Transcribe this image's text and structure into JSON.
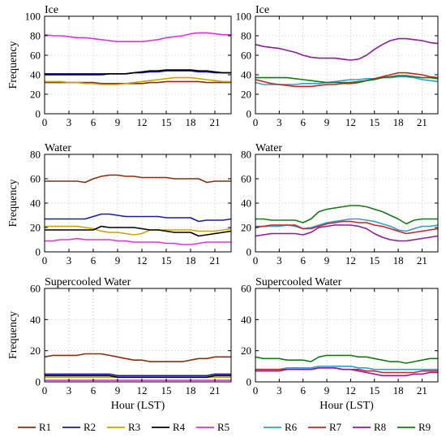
{
  "chart_data": [
    {
      "type": "line",
      "title": "Ice",
      "ylabel": "Frequency",
      "xlabel": "",
      "x": [
        0,
        1,
        2,
        3,
        4,
        5,
        6,
        7,
        8,
        9,
        10,
        11,
        12,
        13,
        14,
        15,
        16,
        17,
        18,
        19,
        20,
        21,
        22,
        23
      ],
      "xticks": [
        0,
        3,
        6,
        9,
        12,
        15,
        18,
        21
      ],
      "xlim": [
        0,
        23
      ],
      "ylim": [
        0,
        100
      ],
      "yticks": [
        0,
        20,
        40,
        60,
        80,
        100
      ],
      "grid": true,
      "series": [
        {
          "name": "R1",
          "color": "#8B2E0F",
          "values": [
            32,
            32,
            32,
            32,
            32,
            32,
            32,
            31,
            31,
            31,
            31,
            31,
            31,
            32,
            32,
            33,
            33,
            33,
            33,
            33,
            32,
            32,
            32,
            32
          ]
        },
        {
          "name": "R2",
          "color": "#1A1AA6",
          "values": [
            41,
            41,
            41,
            41,
            41,
            41,
            41,
            41,
            41,
            41,
            41,
            42,
            42,
            43,
            43,
            44,
            44,
            44,
            44,
            43,
            43,
            42,
            42,
            42
          ]
        },
        {
          "name": "R3",
          "color": "#C8A400",
          "values": [
            33,
            33,
            33,
            32,
            32,
            31,
            31,
            30,
            30,
            30,
            31,
            32,
            33,
            34,
            35,
            36,
            37,
            37,
            37,
            36,
            35,
            34,
            33,
            33
          ]
        },
        {
          "name": "R4",
          "color": "#000000",
          "values": [
            40,
            40,
            40,
            40,
            40,
            40,
            40,
            40,
            41,
            41,
            41,
            42,
            43,
            44,
            44,
            45,
            45,
            45,
            45,
            44,
            44,
            43,
            42,
            42
          ]
        },
        {
          "name": "R5",
          "color": "#E030E0",
          "values": [
            81,
            80,
            80,
            79,
            78,
            78,
            77,
            76,
            75,
            74,
            74,
            74,
            74,
            75,
            76,
            78,
            79,
            80,
            82,
            83,
            83,
            82,
            81,
            81
          ]
        }
      ]
    },
    {
      "type": "line",
      "title": "Ice",
      "ylabel": "",
      "xlabel": "",
      "x": [
        0,
        1,
        2,
        3,
        4,
        5,
        6,
        7,
        8,
        9,
        10,
        11,
        12,
        13,
        14,
        15,
        16,
        17,
        18,
        19,
        20,
        21,
        22,
        23
      ],
      "xticks": [
        0,
        3,
        6,
        9,
        12,
        15,
        18,
        21
      ],
      "xlim": [
        0,
        23
      ],
      "ylim": [
        0,
        100
      ],
      "yticks": [
        0,
        20,
        40,
        60,
        80,
        100
      ],
      "grid": true,
      "series": [
        {
          "name": "R6",
          "color": "#2E9ED6",
          "values": [
            32,
            30,
            30,
            30,
            30,
            30,
            31,
            31,
            31,
            32,
            33,
            34,
            35,
            35,
            36,
            36,
            37,
            37,
            38,
            38,
            37,
            35,
            34,
            33
          ]
        },
        {
          "name": "R7",
          "color": "#CC2222",
          "values": [
            35,
            33,
            31,
            30,
            29,
            28,
            28,
            28,
            29,
            30,
            30,
            31,
            31,
            32,
            34,
            36,
            38,
            40,
            42,
            42,
            41,
            40,
            38,
            37
          ]
        },
        {
          "name": "R8",
          "color": "#8A1C9E",
          "values": [
            71,
            69,
            68,
            67,
            65,
            63,
            60,
            58,
            57,
            57,
            57,
            56,
            55,
            56,
            60,
            66,
            71,
            75,
            77,
            77,
            76,
            75,
            73,
            72
          ]
        },
        {
          "name": "R9",
          "color": "#157A15",
          "values": [
            37,
            37,
            37,
            37,
            37,
            36,
            35,
            34,
            33,
            32,
            32,
            32,
            32,
            33,
            34,
            35,
            37,
            38,
            39,
            39,
            38,
            37,
            37,
            36
          ]
        }
      ]
    },
    {
      "type": "line",
      "title": "Water",
      "ylabel": "Frequency",
      "xlabel": "",
      "x": [
        0,
        1,
        2,
        3,
        4,
        5,
        6,
        7,
        8,
        9,
        10,
        11,
        12,
        13,
        14,
        15,
        16,
        17,
        18,
        19,
        20,
        21,
        22,
        23
      ],
      "xticks": [
        0,
        3,
        6,
        9,
        12,
        15,
        18,
        21
      ],
      "xlim": [
        0,
        23
      ],
      "ylim": [
        0,
        80
      ],
      "yticks": [
        0,
        20,
        40,
        60,
        80
      ],
      "grid": true,
      "series": [
        {
          "name": "R1",
          "color": "#8B2E0F",
          "values": [
            58,
            58,
            58,
            58,
            58,
            57,
            60,
            62,
            63,
            63,
            62,
            62,
            61,
            61,
            61,
            61,
            60,
            60,
            60,
            60,
            57,
            58,
            58,
            58
          ]
        },
        {
          "name": "R2",
          "color": "#1A1AA6",
          "values": [
            27,
            27,
            27,
            27,
            27,
            27,
            29,
            31,
            31,
            30,
            29,
            29,
            29,
            29,
            29,
            28,
            28,
            28,
            28,
            25,
            26,
            26,
            26,
            27
          ]
        },
        {
          "name": "R3",
          "color": "#C8A400",
          "values": [
            21,
            21,
            21,
            21,
            21,
            20,
            19,
            17,
            16,
            16,
            15,
            14,
            15,
            18,
            18,
            18,
            18,
            18,
            18,
            17,
            17,
            17,
            18,
            19
          ]
        },
        {
          "name": "R4",
          "color": "#000000",
          "values": [
            18,
            18,
            18,
            18,
            18,
            18,
            18,
            21,
            20,
            20,
            20,
            20,
            19,
            18,
            18,
            17,
            16,
            16,
            16,
            13,
            14,
            15,
            16,
            17
          ]
        },
        {
          "name": "R5",
          "color": "#E030E0",
          "values": [
            9,
            9,
            10,
            10,
            11,
            10,
            10,
            10,
            10,
            9,
            9,
            8,
            8,
            8,
            8,
            7,
            7,
            6,
            6,
            7,
            8,
            8,
            8,
            8
          ]
        }
      ]
    },
    {
      "type": "line",
      "title": "Water",
      "ylabel": "",
      "xlabel": "",
      "x": [
        0,
        1,
        2,
        3,
        4,
        5,
        6,
        7,
        8,
        9,
        10,
        11,
        12,
        13,
        14,
        15,
        16,
        17,
        18,
        19,
        20,
        21,
        22,
        23
      ],
      "xticks": [
        0,
        3,
        6,
        9,
        12,
        15,
        18,
        21
      ],
      "xlim": [
        0,
        23
      ],
      "ylim": [
        0,
        80
      ],
      "yticks": [
        0,
        20,
        40,
        60,
        80
      ],
      "grid": true,
      "series": [
        {
          "name": "R6",
          "color": "#2E9ED6",
          "values": [
            21,
            21,
            21,
            21,
            22,
            21,
            19,
            20,
            22,
            24,
            25,
            26,
            27,
            27,
            26,
            25,
            23,
            21,
            18,
            17,
            19,
            21,
            21,
            22
          ]
        },
        {
          "name": "R7",
          "color": "#CC2222",
          "values": [
            20,
            21,
            22,
            22,
            22,
            22,
            19,
            19,
            21,
            23,
            24,
            25,
            25,
            24,
            24,
            22,
            21,
            19,
            17,
            15,
            16,
            17,
            18,
            19
          ]
        },
        {
          "name": "R8",
          "color": "#8A1C9E",
          "values": [
            13,
            14,
            15,
            15,
            15,
            15,
            14,
            16,
            20,
            21,
            22,
            22,
            22,
            21,
            19,
            15,
            12,
            10,
            9,
            9,
            10,
            11,
            12,
            13
          ]
        },
        {
          "name": "R9",
          "color": "#157A15",
          "values": [
            27,
            27,
            26,
            26,
            26,
            26,
            24,
            27,
            33,
            35,
            36,
            37,
            38,
            38,
            37,
            35,
            33,
            30,
            27,
            23,
            26,
            27,
            27,
            27
          ]
        }
      ]
    },
    {
      "type": "line",
      "title": "Supercooled Water",
      "ylabel": "Frequency",
      "xlabel": "Hour (LST)",
      "x": [
        0,
        1,
        2,
        3,
        4,
        5,
        6,
        7,
        8,
        9,
        10,
        11,
        12,
        13,
        14,
        15,
        16,
        17,
        18,
        19,
        20,
        21,
        22,
        23
      ],
      "xticks": [
        0,
        3,
        6,
        9,
        12,
        15,
        18,
        21
      ],
      "xlim": [
        0,
        23
      ],
      "ylim": [
        0,
        60
      ],
      "yticks": [
        0,
        20,
        40,
        60
      ],
      "grid": true,
      "series": [
        {
          "name": "R1",
          "color": "#8B2E0F",
          "values": [
            16,
            17,
            17,
            17,
            17,
            18,
            18,
            18,
            17,
            16,
            15,
            14,
            14,
            13,
            13,
            13,
            13,
            13,
            14,
            15,
            15,
            16,
            16,
            16
          ]
        },
        {
          "name": "R2",
          "color": "#1A1AA6",
          "values": [
            5,
            5,
            5,
            5,
            5,
            5,
            5,
            5,
            5,
            4,
            4,
            4,
            4,
            4,
            4,
            4,
            4,
            4,
            4,
            4,
            4,
            5,
            5,
            5
          ]
        },
        {
          "name": "R3",
          "color": "#C8A400",
          "values": [
            3,
            3,
            3,
            3,
            3,
            3,
            3,
            3,
            3,
            3,
            3,
            3,
            3,
            3,
            3,
            3,
            3,
            3,
            3,
            3,
            3,
            3,
            3,
            3
          ]
        },
        {
          "name": "R4",
          "color": "#000000",
          "values": [
            4,
            4,
            4,
            4,
            4,
            4,
            4,
            4,
            4,
            3,
            3,
            3,
            3,
            3,
            3,
            3,
            3,
            3,
            3,
            3,
            3,
            4,
            4,
            4
          ]
        },
        {
          "name": "R5",
          "color": "#E030E0",
          "values": [
            1,
            1,
            1,
            1,
            1,
            1,
            1,
            1,
            1,
            1,
            1,
            1,
            1,
            1,
            1,
            1,
            1,
            1,
            1,
            1,
            1,
            1,
            1,
            1
          ]
        }
      ]
    },
    {
      "type": "line",
      "title": "Supercooled Water",
      "ylabel": "",
      "xlabel": "Hour (LST)",
      "x": [
        0,
        1,
        2,
        3,
        4,
        5,
        6,
        7,
        8,
        9,
        10,
        11,
        12,
        13,
        14,
        15,
        16,
        17,
        18,
        19,
        20,
        21,
        22,
        23
      ],
      "xticks": [
        0,
        3,
        6,
        9,
        12,
        15,
        18,
        21
      ],
      "xlim": [
        0,
        23
      ],
      "ylim": [
        0,
        60
      ],
      "yticks": [
        0,
        20,
        40,
        60
      ],
      "grid": true,
      "series": [
        {
          "name": "R6",
          "color": "#2E9ED6",
          "values": [
            8,
            8,
            8,
            8,
            9,
            9,
            9,
            9,
            10,
            10,
            10,
            10,
            10,
            9,
            9,
            8,
            8,
            8,
            8,
            8,
            8,
            8,
            8,
            8
          ]
        },
        {
          "name": "R7",
          "color": "#CC2222",
          "values": [
            8,
            8,
            8,
            8,
            8,
            8,
            8,
            8,
            9,
            9,
            9,
            8,
            8,
            8,
            7,
            7,
            6,
            6,
            6,
            6,
            6,
            7,
            7,
            7
          ]
        },
        {
          "name": "R8",
          "color": "#8A1C9E",
          "values": [
            7,
            7,
            7,
            7,
            8,
            8,
            8,
            8,
            9,
            9,
            9,
            8,
            8,
            7,
            6,
            5,
            4,
            4,
            4,
            4,
            5,
            5,
            6,
            6
          ]
        },
        {
          "name": "R9",
          "color": "#157A15",
          "values": [
            16,
            15,
            15,
            15,
            14,
            14,
            14,
            13,
            16,
            17,
            17,
            17,
            17,
            16,
            16,
            15,
            14,
            13,
            13,
            12,
            13,
            14,
            15,
            15
          ]
        }
      ]
    }
  ],
  "legend": {
    "left": [
      {
        "name": "R1",
        "color": "#8B2E0F"
      },
      {
        "name": "R2",
        "color": "#1A1AA6"
      },
      {
        "name": "R3",
        "color": "#C8A400"
      },
      {
        "name": "R4",
        "color": "#000000"
      },
      {
        "name": "R5",
        "color": "#E030E0"
      }
    ],
    "right": [
      {
        "name": "R6",
        "color": "#2E9ED6"
      },
      {
        "name": "R7",
        "color": "#CC2222"
      },
      {
        "name": "R8",
        "color": "#8A1C9E"
      },
      {
        "name": "R9",
        "color": "#157A15"
      }
    ]
  }
}
